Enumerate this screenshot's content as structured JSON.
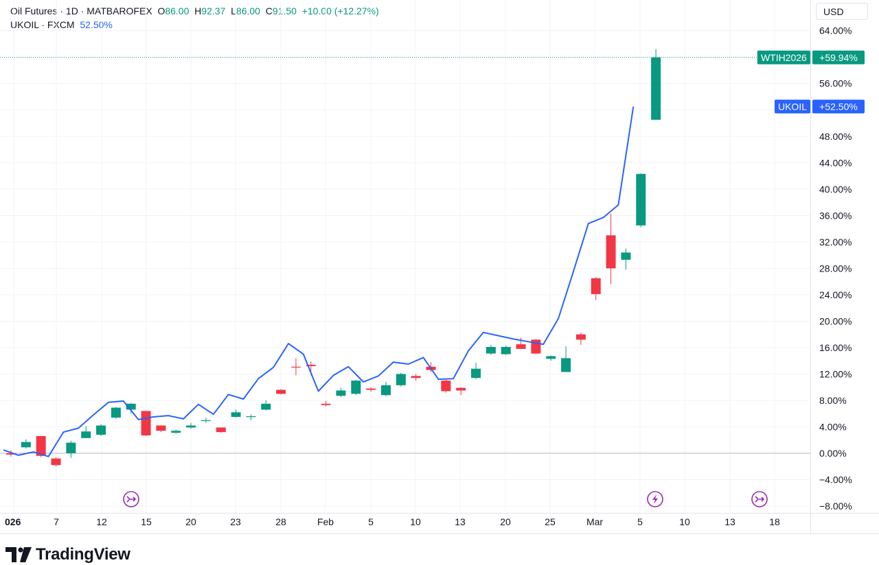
{
  "header": {
    "title": "Oil Futures · 1D · MATBAROFEX",
    "o_label": "O",
    "o_value": "86.00",
    "h_label": "H",
    "h_value": "92.37",
    "l_label": "L",
    "l_value": "86.00",
    "c_label": "C",
    "c_value": "91.50",
    "change": "+10.00 (+12.27%)",
    "compare_symbol": "UKOIL · FXCM",
    "compare_value": "52.50%"
  },
  "currency_label": "USD",
  "brand": {
    "name": "TradingView"
  },
  "colors": {
    "up": "#089981",
    "down": "#f23645",
    "line": "#2962ff",
    "event": "#9c27b0"
  },
  "chart_data": {
    "type": "candlestick",
    "y_unit": "%",
    "ylim": [
      -9,
      65
    ],
    "y_ticks": [
      -8,
      -4,
      0,
      4,
      8,
      12,
      16,
      20,
      24,
      28,
      32,
      36,
      40,
      44,
      48,
      52,
      56,
      60,
      64
    ],
    "y_tick_labels": [
      "−8.00%",
      "−4.00%",
      "0.00%",
      "4.00%",
      "8.00%",
      "12.00%",
      "16.00%",
      "20.00%",
      "24.00%",
      "28.00%",
      "32.00%",
      "36.00%",
      "40.00%",
      "44.00%",
      "48.00%",
      "52.00%",
      "56.00%",
      "60.00%",
      "64.00%"
    ],
    "x_tick_labels": [
      "026",
      "7",
      "12",
      "15",
      "20",
      "23",
      "28",
      "Feb",
      "5",
      "10",
      "13",
      "20",
      "25",
      "Mar",
      "5",
      "10",
      "13",
      "18"
    ],
    "main_series": {
      "name": "Oil Futures",
      "candles": [
        {
          "o": 0.0,
          "h": 0.4,
          "l": -0.5,
          "c": -0.2
        },
        {
          "o": 0.9,
          "h": 2.1,
          "l": 0.7,
          "c": 1.7
        },
        {
          "o": 2.6,
          "h": 2.6,
          "l": -0.6,
          "c": -0.4
        },
        {
          "o": -0.8,
          "h": -0.6,
          "l": -2.0,
          "c": -1.8
        },
        {
          "o": 0.0,
          "h": 1.9,
          "l": -0.7,
          "c": 1.6
        },
        {
          "o": 2.3,
          "h": 4.1,
          "l": 2.3,
          "c": 3.3
        },
        {
          "o": 2.8,
          "h": 4.4,
          "l": 2.6,
          "c": 4.2
        },
        {
          "o": 5.4,
          "h": 7.0,
          "l": 5.2,
          "c": 6.9
        },
        {
          "o": 6.6,
          "h": 7.6,
          "l": 6.0,
          "c": 7.5
        },
        {
          "o": 6.4,
          "h": 6.4,
          "l": 2.6,
          "c": 2.7
        },
        {
          "o": 4.2,
          "h": 4.2,
          "l": 3.2,
          "c": 3.4
        },
        {
          "o": 3.1,
          "h": 3.6,
          "l": 2.9,
          "c": 3.4
        },
        {
          "o": 3.9,
          "h": 4.6,
          "l": 3.7,
          "c": 4.2
        },
        {
          "o": 4.9,
          "h": 5.4,
          "l": 4.6,
          "c": 5.0
        },
        {
          "o": 3.9,
          "h": 3.9,
          "l": 3.1,
          "c": 3.2
        },
        {
          "o": 5.5,
          "h": 6.6,
          "l": 5.4,
          "c": 6.2
        },
        {
          "o": 5.5,
          "h": 5.9,
          "l": 5.0,
          "c": 5.6
        },
        {
          "o": 6.6,
          "h": 8.0,
          "l": 6.5,
          "c": 7.5
        },
        {
          "o": 9.6,
          "h": 9.7,
          "l": 8.9,
          "c": 9.0
        },
        {
          "o": 13.1,
          "h": 14.4,
          "l": 11.8,
          "c": 13.0
        },
        {
          "o": 13.4,
          "h": 13.9,
          "l": 11.8,
          "c": 13.2
        },
        {
          "o": 7.5,
          "h": 7.9,
          "l": 7.1,
          "c": 7.3
        },
        {
          "o": 8.7,
          "h": 9.9,
          "l": 8.5,
          "c": 9.5
        },
        {
          "o": 9.0,
          "h": 11.1,
          "l": 8.8,
          "c": 11.0
        },
        {
          "o": 9.8,
          "h": 10.0,
          "l": 9.3,
          "c": 9.6
        },
        {
          "o": 8.8,
          "h": 10.8,
          "l": 8.6,
          "c": 10.3
        },
        {
          "o": 10.3,
          "h": 12.2,
          "l": 10.1,
          "c": 12.0
        },
        {
          "o": 11.7,
          "h": 12.0,
          "l": 11.0,
          "c": 11.4
        },
        {
          "o": 13.1,
          "h": 13.8,
          "l": 12.3,
          "c": 12.6
        },
        {
          "o": 11.0,
          "h": 11.2,
          "l": 9.2,
          "c": 9.4
        },
        {
          "o": 9.9,
          "h": 10.0,
          "l": 8.8,
          "c": 9.5
        },
        {
          "o": 11.4,
          "h": 13.7,
          "l": 11.2,
          "c": 12.8
        },
        {
          "o": 15.1,
          "h": 16.4,
          "l": 14.9,
          "c": 16.1
        },
        {
          "o": 15.0,
          "h": 16.3,
          "l": 14.9,
          "c": 16.1
        },
        {
          "o": 16.5,
          "h": 17.5,
          "l": 15.8,
          "c": 15.8
        },
        {
          "o": 17.2,
          "h": 17.3,
          "l": 15.0,
          "c": 15.1
        },
        {
          "o": 14.3,
          "h": 14.8,
          "l": 14.0,
          "c": 14.7
        },
        {
          "o": 12.3,
          "h": 16.2,
          "l": 12.3,
          "c": 14.4
        },
        {
          "o": 18.0,
          "h": 18.3,
          "l": 16.4,
          "c": 17.2
        },
        {
          "o": 26.5,
          "h": 26.7,
          "l": 23.2,
          "c": 24.1
        },
        {
          "o": 33.0,
          "h": 36.3,
          "l": 25.6,
          "c": 28.0
        },
        {
          "o": 29.3,
          "h": 31.0,
          "l": 27.8,
          "c": 30.4
        },
        {
          "o": 34.5,
          "h": 42.4,
          "l": 34.2,
          "c": 42.3
        },
        {
          "o": 50.5,
          "h": 61.2,
          "l": 50.5,
          "c": 59.94
        }
      ]
    },
    "compare_series": {
      "name": "UKOIL",
      "values": [
        0.5,
        -0.3,
        0.2,
        -0.5,
        3.2,
        3.8,
        5.8,
        7.7,
        7.9,
        5.1,
        5.5,
        5.7,
        5.2,
        7.4,
        5.9,
        8.9,
        8.2,
        11.3,
        13.0,
        16.6,
        15.0,
        9.4,
        11.8,
        13.1,
        10.8,
        11.7,
        13.8,
        13.5,
        14.5,
        11.2,
        11.3,
        15.5,
        18.3,
        17.8,
        17.3,
        16.9,
        16.5,
        20.4,
        27.5,
        34.8,
        35.7,
        37.6,
        52.5
      ]
    },
    "labels": [
      {
        "symbol": "WTIH2026",
        "value": "+59.94%"
      },
      {
        "symbol": "UKOIL",
        "value": "+52.50%"
      }
    ],
    "events": [
      {
        "icon": "arrow-event-icon"
      },
      {
        "icon": "lightning-event-icon"
      },
      {
        "icon": "arrow-event-icon"
      }
    ],
    "grid": true
  }
}
